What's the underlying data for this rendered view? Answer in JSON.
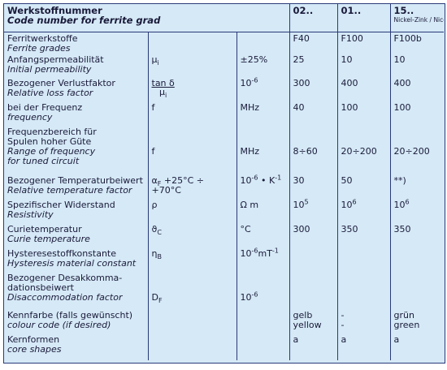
{
  "header": {
    "title": "Werkstoffnummer",
    "subtitle": "Code number for ferrite grad",
    "columns": [
      "02..",
      "01..",
      "15.."
    ],
    "note": "Nickel-Zink / Nicel-Zinc"
  },
  "rows": [
    {
      "de": [
        "Ferritwerkstoffe"
      ],
      "en": [
        "Ferrite grades"
      ],
      "symbol": [],
      "unit": [],
      "values": [
        [
          "F40"
        ],
        [
          "F100"
        ],
        [
          "F100b"
        ]
      ]
    },
    {
      "de": [
        "Anfangspermeabilität"
      ],
      "en": [
        "Initial permeability"
      ],
      "symbol": [
        "μ",
        {
          "sub": "i"
        }
      ],
      "unit": [
        "±25%"
      ],
      "values": [
        [
          "25"
        ],
        [
          "10"
        ],
        [
          "10"
        ]
      ]
    },
    {
      "de": [
        "Bezogener Verlustfaktor"
      ],
      "en": [
        "Relative loss factor"
      ],
      "symbol": [
        {
          "num": "tan δ",
          "den": "μ",
          "densub": "i"
        }
      ],
      "unit": [
        "10",
        {
          "sup": "-6"
        }
      ],
      "values": [
        [
          "300"
        ],
        [
          "400"
        ],
        [
          "400"
        ]
      ]
    },
    {
      "de": [
        "bei der Frequenz"
      ],
      "en": [
        "frequency"
      ],
      "symbol": [
        "f"
      ],
      "unit": [
        "MHz"
      ],
      "values": [
        [
          "40"
        ],
        [
          "100"
        ],
        [
          "100"
        ]
      ]
    },
    {
      "de": [
        "Frequenzbereich für",
        "Spulen hoher Güte"
      ],
      "en": [
        "Range of frequency",
        "for tuned circuit"
      ],
      "symbol": [
        "f"
      ],
      "unit": [
        "MHz"
      ],
      "values": [
        [
          "8÷60"
        ],
        [
          "20÷200"
        ],
        [
          "20÷200"
        ]
      ]
    },
    {
      "de": [
        "Bezogener Temperaturbeiwert"
      ],
      "en": [
        "Relative temperature factor"
      ],
      "symbol": [
        "α",
        {
          "sub": "F"
        },
        " +25°C ÷ +70°C"
      ],
      "unit": [
        "10",
        {
          "sup": "-6"
        },
        " • K",
        {
          "sup": "-1"
        }
      ],
      "values": [
        [
          "30"
        ],
        [
          "50"
        ],
        [
          "**)"
        ]
      ]
    },
    {
      "de": [
        "Spezifischer Widerstand"
      ],
      "en": [
        "Resistivity"
      ],
      "symbol": [
        "ρ"
      ],
      "unit": [
        "Ω m"
      ],
      "values": [
        [
          "10",
          {
            "sup": "5"
          }
        ],
        [
          "10",
          {
            "sup": "6"
          }
        ],
        [
          "10",
          {
            "sup": "6"
          }
        ]
      ]
    },
    {
      "de": [
        "Curietemperatur"
      ],
      "en": [
        "Curie temperature"
      ],
      "symbol": [
        "ϑ",
        {
          "sub": "C"
        }
      ],
      "unit": [
        "°C"
      ],
      "values": [
        [
          "300"
        ],
        [
          "350"
        ],
        [
          "350"
        ]
      ]
    },
    {
      "de": [
        "Hysteresestoffkonstante"
      ],
      "en": [
        "Hysteresis material constant"
      ],
      "symbol": [
        "η",
        {
          "sub": "B"
        }
      ],
      "unit": [
        "10",
        {
          "sup": "-6"
        },
        "mT",
        {
          "sup": "-1"
        }
      ],
      "values": [
        [],
        [],
        []
      ]
    },
    {
      "de": [
        "Bezogener Desakkomma-",
        "dationsbeiwert"
      ],
      "en": [
        "Disaccommodation factor"
      ],
      "symbol": [
        "D",
        {
          "sub": "F"
        }
      ],
      "unit": [
        "10",
        {
          "sup": "-6"
        }
      ],
      "values": [
        [],
        [],
        []
      ]
    },
    {
      "de": [
        "Kennfarbe (falls gewünscht)"
      ],
      "en": [
        "colour code (if desired)"
      ],
      "symbol": [],
      "unit": [],
      "values": [
        [
          "gelb",
          {
            "br": "yellow"
          }
        ],
        [
          "-",
          {
            "br": "-"
          }
        ],
        [
          "grün",
          {
            "br": "green"
          }
        ]
      ]
    },
    {
      "de": [
        "Kernformen"
      ],
      "en": [
        "core shapes"
      ],
      "symbol": [],
      "unit": [],
      "values": [
        [
          "a"
        ],
        [
          "a"
        ],
        [
          "a"
        ]
      ]
    }
  ]
}
